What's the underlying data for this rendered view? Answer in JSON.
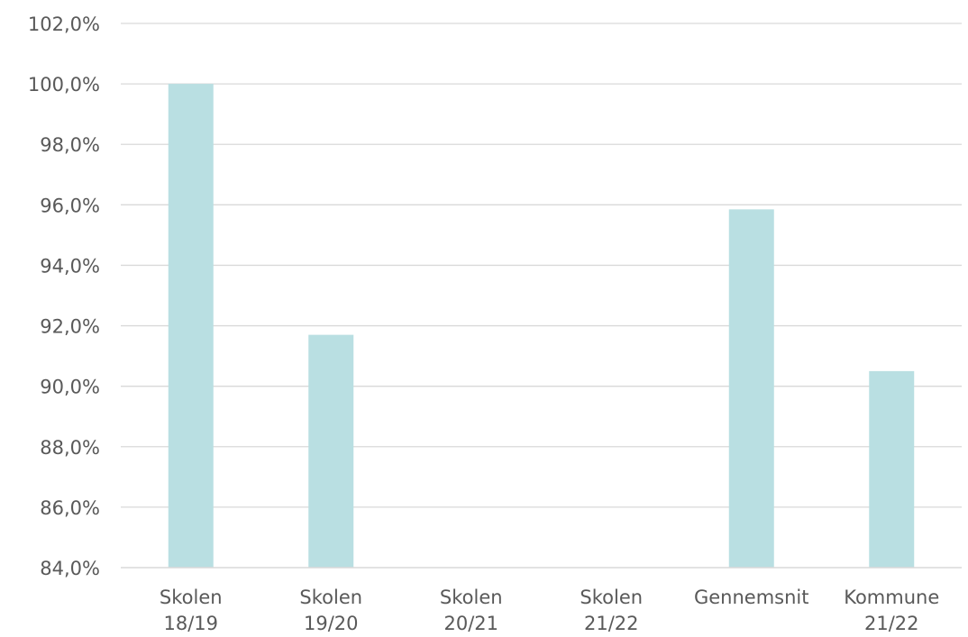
{
  "chart_data": {
    "type": "bar",
    "title": "",
    "xlabel": "",
    "ylabel": "",
    "categories": [
      [
        "Skolen",
        "18/19"
      ],
      [
        "Skolen",
        "19/20"
      ],
      [
        "Skolen",
        "20/21"
      ],
      [
        "Skolen",
        "21/22"
      ],
      [
        "Gennemsnit",
        ""
      ],
      [
        "Kommune",
        "21/22"
      ]
    ],
    "values": [
      100.0,
      91.7,
      null,
      null,
      95.85,
      90.5
    ],
    "ylim": [
      84,
      102
    ],
    "yticks": [
      84,
      86,
      88,
      90,
      92,
      94,
      96,
      98,
      100,
      102
    ],
    "ytick_labels": [
      "84,0%",
      "86,0%",
      "88,0%",
      "90,0%",
      "92,0%",
      "94,0%",
      "96,0%",
      "98,0%",
      "100,0%",
      "102,0%"
    ],
    "grid": true,
    "legend": "none",
    "bar_color": "#b9dfe2",
    "grid_color": "#d9d9d9",
    "axis_color": "#d9d9d9",
    "text_color": "#595959"
  }
}
